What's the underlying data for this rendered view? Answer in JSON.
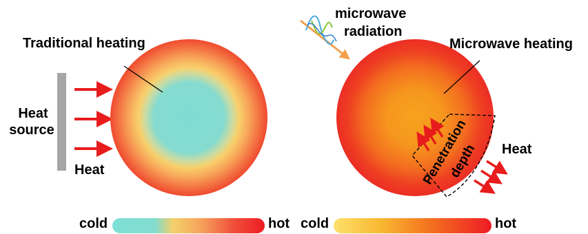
{
  "left_panel": {
    "title": "Traditional heating",
    "source_label_line1": "Heat",
    "source_label_line2": "source",
    "heat_label": "Heat",
    "colorbar": {
      "cold_label": "cold",
      "hot_label": "hot"
    }
  },
  "right_panel": {
    "radiation_label_line1": "microwave",
    "radiation_label_line2": "radiation",
    "title": "Microwave heating",
    "penetration_label_line1": "Penetration",
    "penetration_label_line2": "depth",
    "heat_label": "Heat",
    "colorbar": {
      "cold_label": "cold",
      "hot_label": "hot"
    }
  },
  "colors": {
    "cold": "#7ddfd6",
    "warm": "#f5c86a",
    "hot": "#ee1d1d",
    "arrow": "#e81c1c",
    "heat_source": "#a6a6a6"
  },
  "icons": {
    "radiation": "microwave-wave-icon"
  }
}
